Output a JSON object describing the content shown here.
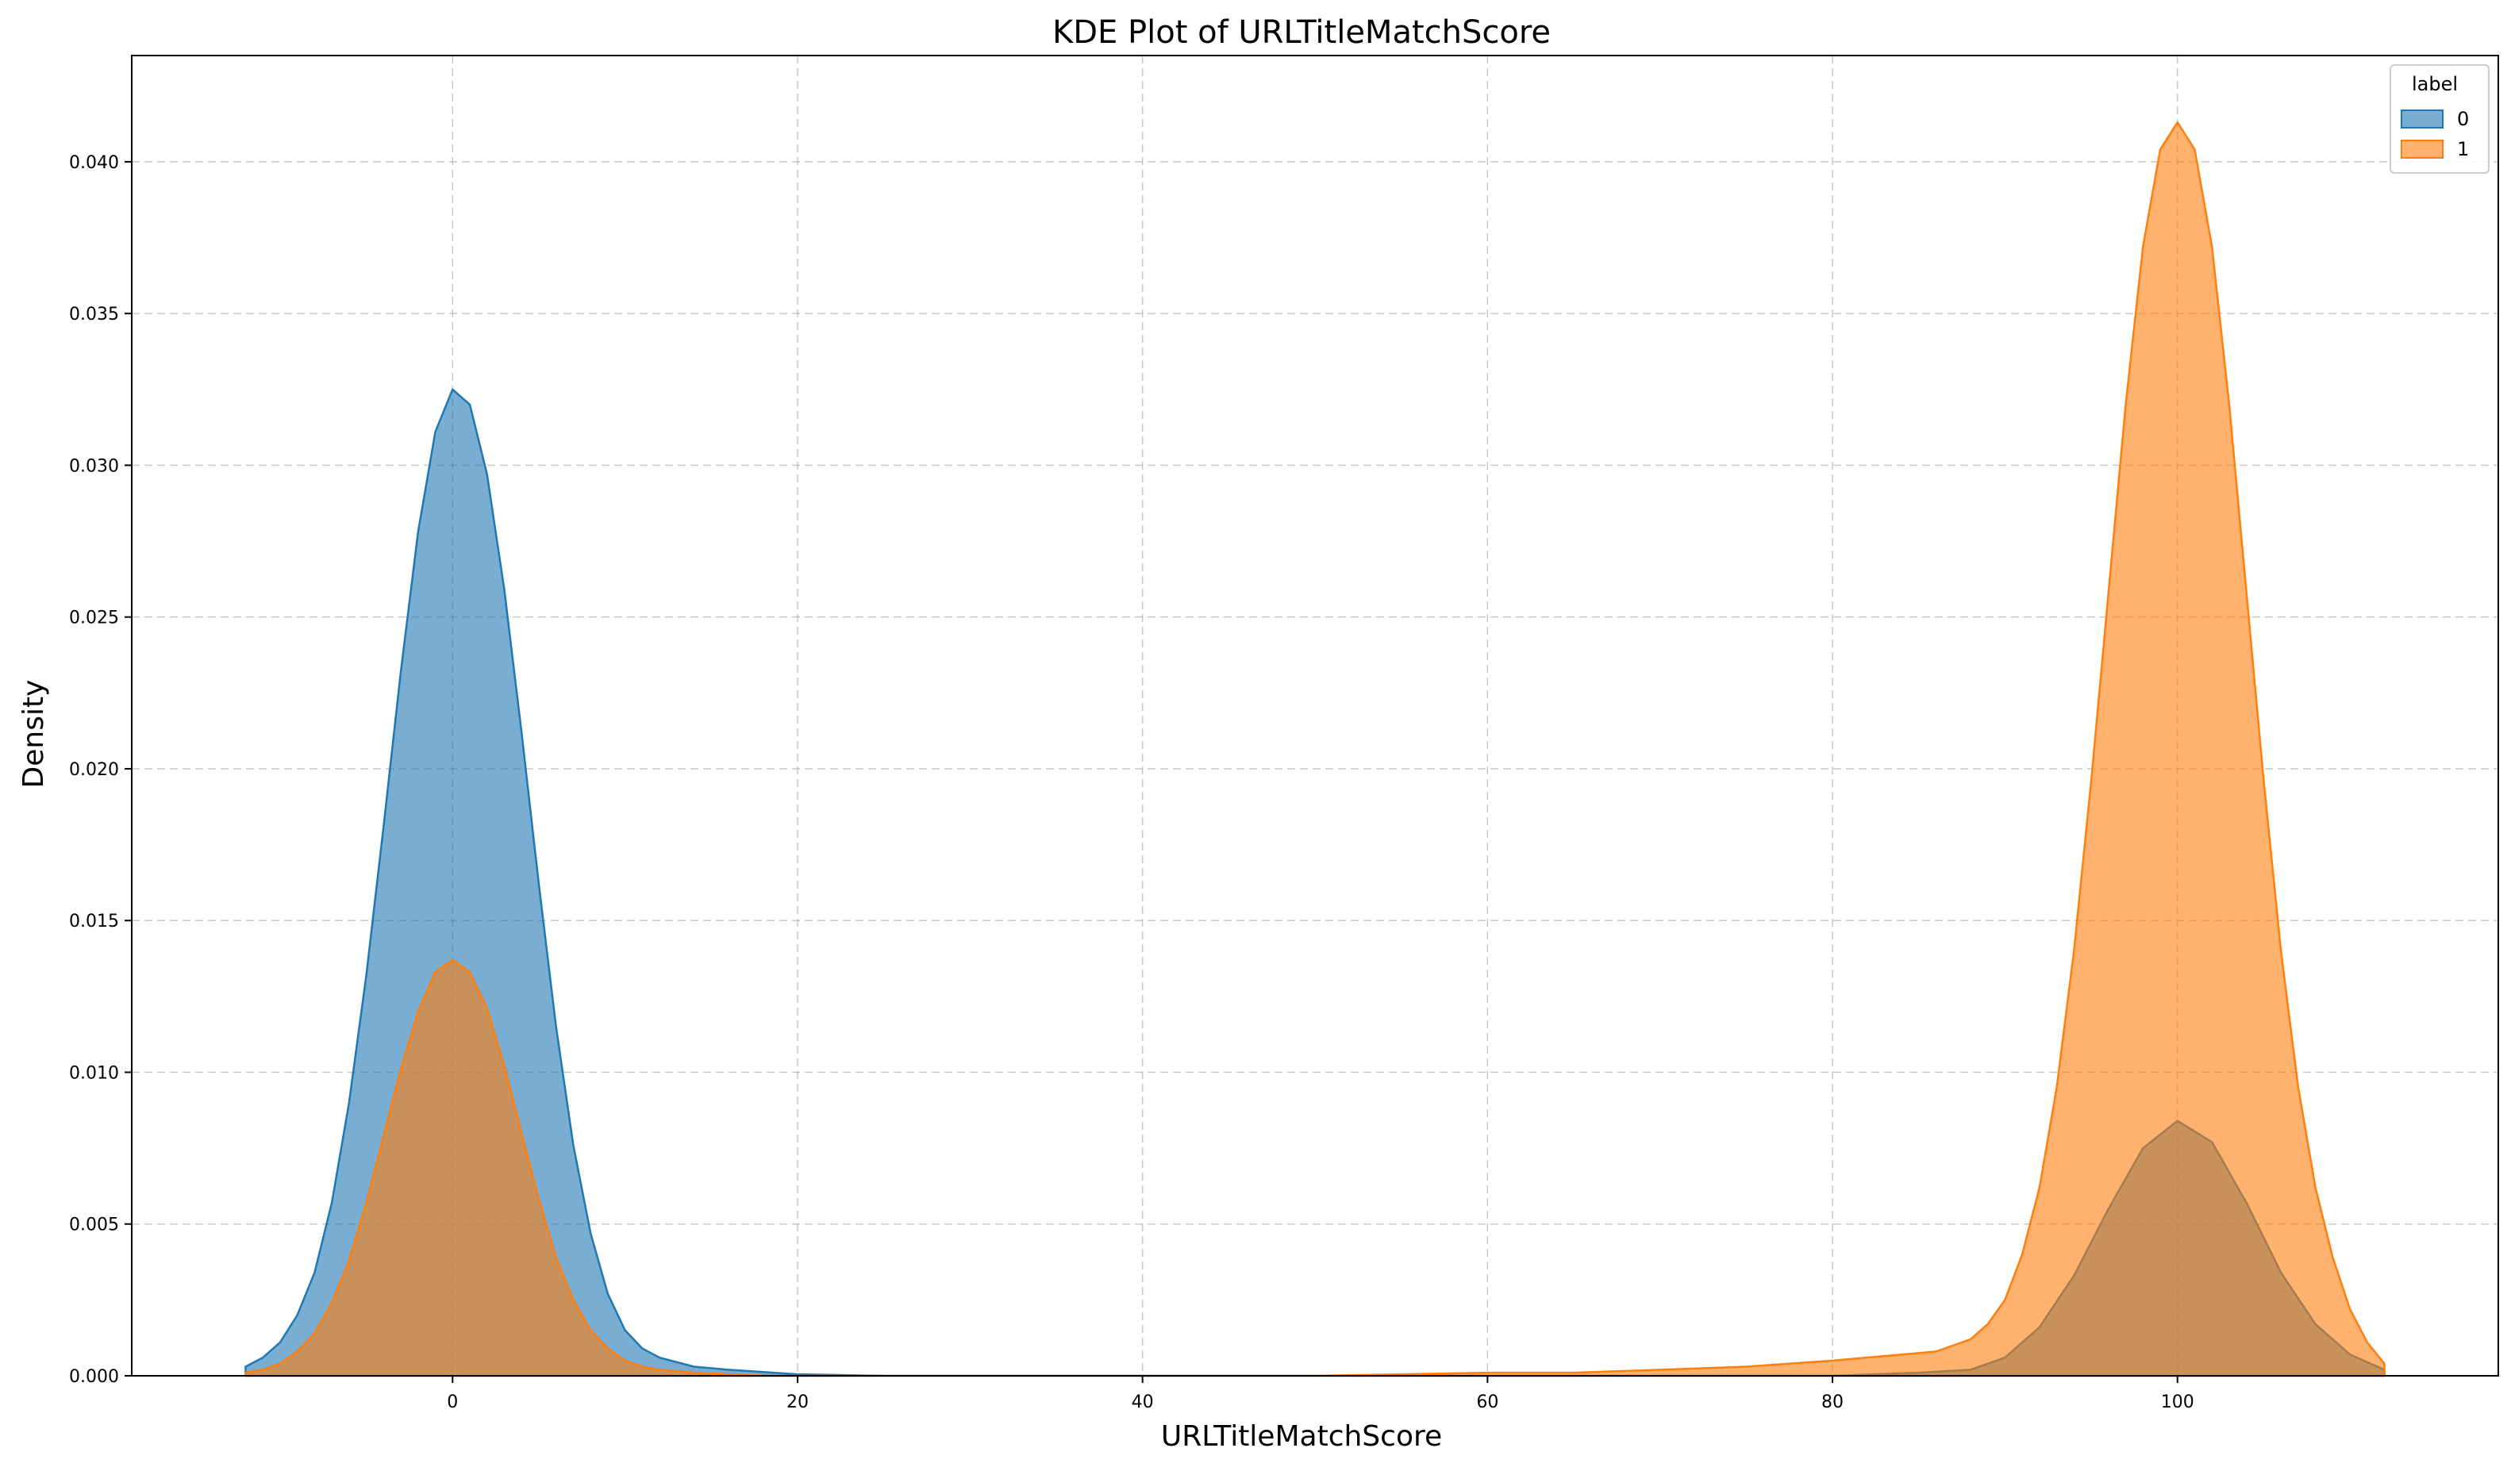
{
  "chart_data": {
    "type": "area",
    "title": "KDE Plot of URLTitleMatchScore",
    "xlabel": "URLTitleMatchScore",
    "ylabel": "Density",
    "xlim": [
      -18.6,
      118.6
    ],
    "ylim": [
      0,
      0.0435
    ],
    "xticks": [
      0,
      20,
      40,
      60,
      80,
      100
    ],
    "yticks": [
      0.0,
      0.005,
      0.01,
      0.015,
      0.02,
      0.025,
      0.03,
      0.035,
      0.04
    ],
    "ytick_labels": [
      "0.000",
      "0.005",
      "0.010",
      "0.015",
      "0.020",
      "0.025",
      "0.030",
      "0.035",
      "0.040"
    ],
    "xtick_labels": [
      "0",
      "20",
      "40",
      "60",
      "80",
      "100"
    ],
    "grid": true,
    "legend": {
      "title": "label",
      "position": "top-right"
    },
    "series": [
      {
        "name": "0",
        "color": "#1f77b4",
        "fill_opacity": 0.6,
        "points": [
          [
            -12,
            0.0003
          ],
          [
            -11,
            0.0006
          ],
          [
            -10,
            0.0011
          ],
          [
            -9,
            0.002
          ],
          [
            -8,
            0.0034
          ],
          [
            -7,
            0.0057
          ],
          [
            -6,
            0.009
          ],
          [
            -5,
            0.0132
          ],
          [
            -4,
            0.0181
          ],
          [
            -3,
            0.0232
          ],
          [
            -2,
            0.0278
          ],
          [
            -1,
            0.0311
          ],
          [
            0,
            0.0325
          ],
          [
            1,
            0.032
          ],
          [
            2,
            0.0297
          ],
          [
            3,
            0.0259
          ],
          [
            4,
            0.0212
          ],
          [
            5,
            0.0162
          ],
          [
            6,
            0.0115
          ],
          [
            7,
            0.0076
          ],
          [
            8,
            0.0047
          ],
          [
            9,
            0.0027
          ],
          [
            10,
            0.0015
          ],
          [
            11,
            0.0009
          ],
          [
            12,
            0.0006
          ],
          [
            14,
            0.0003
          ],
          [
            16,
            0.0002
          ],
          [
            20,
            5e-05
          ],
          [
            25,
            0.0
          ],
          [
            40,
            0.0
          ],
          [
            60,
            0.0
          ],
          [
            80,
            0.0
          ],
          [
            85,
            0.0001
          ],
          [
            88,
            0.0002
          ],
          [
            90,
            0.0006
          ],
          [
            92,
            0.0016
          ],
          [
            94,
            0.0033
          ],
          [
            96,
            0.0055
          ],
          [
            98,
            0.0075
          ],
          [
            100,
            0.0084
          ],
          [
            102,
            0.0077
          ],
          [
            104,
            0.0057
          ],
          [
            106,
            0.0034
          ],
          [
            108,
            0.0017
          ],
          [
            110,
            0.0007
          ],
          [
            112,
            0.0002
          ]
        ]
      },
      {
        "name": "1",
        "color": "#ff7f0e",
        "fill_opacity": 0.6,
        "points": [
          [
            -12,
            0.0001
          ],
          [
            -11,
            0.0002
          ],
          [
            -10,
            0.0004
          ],
          [
            -9,
            0.0008
          ],
          [
            -8,
            0.0014
          ],
          [
            -7,
            0.0024
          ],
          [
            -6,
            0.0038
          ],
          [
            -5,
            0.0057
          ],
          [
            -4,
            0.0079
          ],
          [
            -3,
            0.0101
          ],
          [
            -2,
            0.012
          ],
          [
            -1,
            0.0133
          ],
          [
            0,
            0.0137
          ],
          [
            1,
            0.0133
          ],
          [
            2,
            0.0121
          ],
          [
            3,
            0.0102
          ],
          [
            4,
            0.008
          ],
          [
            5,
            0.0058
          ],
          [
            6,
            0.0039
          ],
          [
            7,
            0.0025
          ],
          [
            8,
            0.0015
          ],
          [
            9,
            0.0009
          ],
          [
            10,
            0.0005
          ],
          [
            11,
            0.0003
          ],
          [
            12,
            0.0002
          ],
          [
            14,
            0.0001
          ],
          [
            18,
            0.0
          ],
          [
            40,
            0.0
          ],
          [
            50,
            0.0
          ],
          [
            60,
            0.0001
          ],
          [
            65,
            0.0001
          ],
          [
            70,
            0.0002
          ],
          [
            75,
            0.0003
          ],
          [
            80,
            0.0005
          ],
          [
            84,
            0.0007
          ],
          [
            86,
            0.0008
          ],
          [
            88,
            0.0012
          ],
          [
            89,
            0.0017
          ],
          [
            90,
            0.0025
          ],
          [
            91,
            0.004
          ],
          [
            92,
            0.0062
          ],
          [
            93,
            0.0095
          ],
          [
            94,
            0.014
          ],
          [
            95,
            0.0196
          ],
          [
            96,
            0.0258
          ],
          [
            97,
            0.032
          ],
          [
            98,
            0.0372
          ],
          [
            99,
            0.0404
          ],
          [
            100,
            0.0413
          ],
          [
            101,
            0.0404
          ],
          [
            102,
            0.0372
          ],
          [
            103,
            0.032
          ],
          [
            104,
            0.0258
          ],
          [
            105,
            0.0196
          ],
          [
            106,
            0.014
          ],
          [
            107,
            0.0095
          ],
          [
            108,
            0.0062
          ],
          [
            109,
            0.0039
          ],
          [
            110,
            0.0022
          ],
          [
            111,
            0.0011
          ],
          [
            112,
            0.0004
          ]
        ]
      }
    ]
  }
}
